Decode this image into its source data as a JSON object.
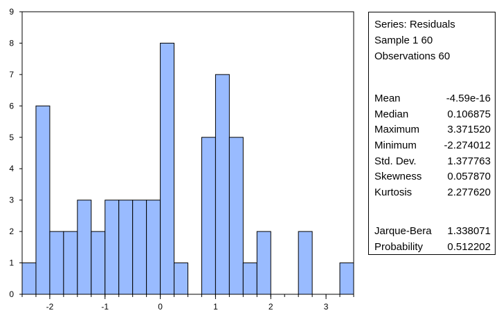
{
  "chart_data": {
    "type": "bar",
    "subtype": "histogram",
    "bin_width": 0.25,
    "bins": [
      {
        "x0": -2.5,
        "x1": -2.25,
        "count": 1
      },
      {
        "x0": -2.25,
        "x1": -2.0,
        "count": 6
      },
      {
        "x0": -2.0,
        "x1": -1.75,
        "count": 2
      },
      {
        "x0": -1.75,
        "x1": -1.5,
        "count": 2
      },
      {
        "x0": -1.5,
        "x1": -1.25,
        "count": 3
      },
      {
        "x0": -1.25,
        "x1": -1.0,
        "count": 2
      },
      {
        "x0": -1.0,
        "x1": -0.75,
        "count": 3
      },
      {
        "x0": -0.75,
        "x1": -0.5,
        "count": 3
      },
      {
        "x0": -0.5,
        "x1": -0.25,
        "count": 3
      },
      {
        "x0": -0.25,
        "x1": 0.0,
        "count": 3
      },
      {
        "x0": 0.0,
        "x1": 0.25,
        "count": 8
      },
      {
        "x0": 0.25,
        "x1": 0.5,
        "count": 1
      },
      {
        "x0": 0.75,
        "x1": 1.0,
        "count": 5
      },
      {
        "x0": 1.0,
        "x1": 1.25,
        "count": 7
      },
      {
        "x0": 1.25,
        "x1": 1.5,
        "count": 5
      },
      {
        "x0": 1.5,
        "x1": 1.75,
        "count": 1
      },
      {
        "x0": 1.75,
        "x1": 2.0,
        "count": 2
      },
      {
        "x0": 2.5,
        "x1": 2.75,
        "count": 2
      },
      {
        "x0": 3.25,
        "x1": 3.5,
        "count": 1
      }
    ],
    "xlim": [
      -2.5,
      3.5
    ],
    "ylim": [
      0,
      9
    ],
    "x_ticks": [
      -2,
      -1,
      0,
      1,
      2,
      3
    ],
    "y_ticks": [
      0,
      1,
      2,
      3,
      4,
      5,
      6,
      7,
      8,
      9
    ],
    "bar_color": "#99bbff",
    "bar_edge_color": "#000000",
    "grid": false
  },
  "stats": {
    "series": "Series: Residuals",
    "sample": "Sample 1 60",
    "observations": "Observations 60",
    "rows": [
      {
        "label": "Mean",
        "value": "-4.59e-16"
      },
      {
        "label": "Median",
        "value": "0.106875"
      },
      {
        "label": "Maximum",
        "value": "3.371520"
      },
      {
        "label": "Minimum",
        "value": "-2.274012"
      },
      {
        "label": "Std. Dev.",
        "value": "1.377763"
      },
      {
        "label": "Skewness",
        "value": "0.057870"
      },
      {
        "label": "Kurtosis",
        "value": "2.277620"
      }
    ],
    "tests": [
      {
        "label": "Jarque-Bera",
        "value": "1.338071"
      },
      {
        "label": "Probability",
        "value": "0.512202"
      }
    ]
  }
}
